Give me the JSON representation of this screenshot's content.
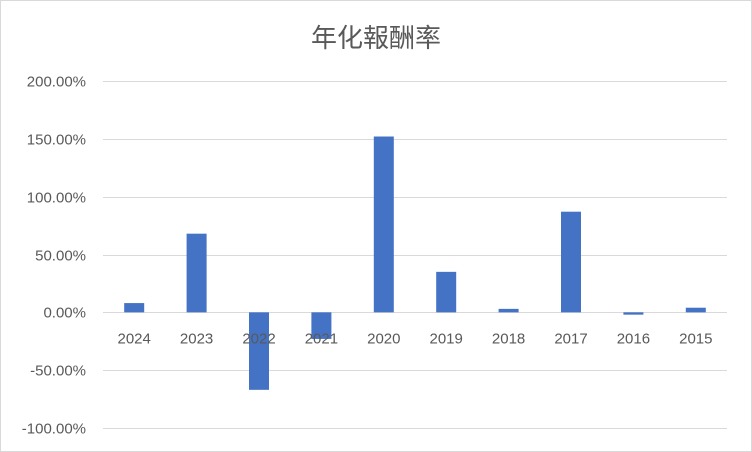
{
  "chart_data": {
    "type": "bar",
    "title": "年化報酬率",
    "categories": [
      "2024",
      "2023",
      "2022",
      "2021",
      "2020",
      "2019",
      "2018",
      "2017",
      "2016",
      "2015"
    ],
    "series": [
      {
        "values": [
          8,
          68,
          -67,
          -23,
          152,
          35,
          3,
          87,
          -2,
          4
        ]
      }
    ],
    "ylim": [
      -100,
      200
    ],
    "yticks": [
      200,
      150,
      100,
      50,
      0,
      -50,
      -100
    ],
    "ytick_labels": [
      "200.00%",
      "150.00%",
      "100.00%",
      "50.00%",
      "0.00%",
      "-50.00%",
      "-100.00%"
    ],
    "grid": true,
    "legend": false,
    "bar_color": "#4472c4",
    "grid_color": "#d9d9d9",
    "text_color": "#595959"
  }
}
